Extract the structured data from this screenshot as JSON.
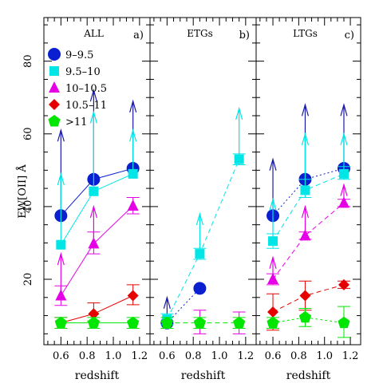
{
  "chart_data": {
    "type": "scatter",
    "ylabel": "EW[OII] Å",
    "ylim": [
      2,
      92
    ],
    "yticks": [
      20,
      40,
      60,
      80
    ],
    "xticks": [
      0.6,
      0.8,
      1.0,
      1.2
    ],
    "legend_placement": "top-left of panel a",
    "series_styles": [
      {
        "name": "9–9.5",
        "color": "#0a1fd0",
        "arrow_color": "#1a1aa8",
        "marker": "circle",
        "dash": "2,3"
      },
      {
        "name": "9.5–10",
        "color": "#00e5e5",
        "arrow_color": "#00e5e5",
        "marker": "square",
        "dash": "none"
      },
      {
        "name": "10–10.5",
        "color": "#e600e6",
        "arrow_color": "#e600e6",
        "marker": "triangle",
        "dash": "none"
      },
      {
        "name": "10.5–11",
        "color": "#e60000",
        "arrow_color": "#e60000",
        "marker": "diamond",
        "dash": "none"
      },
      {
        "name": ">11",
        "color": "#00e600",
        "arrow_color": "#00e600",
        "marker": "pentagon",
        "dash": "6,4"
      }
    ],
    "panels": [
      {
        "title": "ALL",
        "tag": "a)",
        "xlabel": "redshift",
        "xlim": [
          0.47,
          1.28
        ],
        "show_legend": true,
        "show_y": true,
        "series": [
          {
            "style": 0,
            "x": [
              0.6,
              0.85,
              1.15
            ],
            "y": [
              37.5,
              47.5,
              50.5
            ],
            "arrow_to": [
              61,
              72,
              69
            ],
            "dash": "none"
          },
          {
            "style": 1,
            "x": [
              0.6,
              0.85,
              1.15
            ],
            "y": [
              29.5,
              44.2,
              49
            ],
            "arrow_to": [
              49,
              66,
              61
            ],
            "dash": "none"
          },
          {
            "style": 2,
            "x": [
              0.6,
              0.85,
              1.15
            ],
            "y": [
              15.5,
              29.8,
              40.2
            ],
            "err": [
              [
                12.8,
                18.2
              ],
              [
                27,
                33
              ],
              [
                38,
                42.5
              ]
            ],
            "arrow_to": [
              27,
              40,
              null
            ],
            "dash": "none"
          },
          {
            "style": 3,
            "x": [
              0.6,
              0.85,
              1.15
            ],
            "y": [
              8,
              10.5,
              15.5
            ],
            "err": [
              [
                6.5,
                9.5
              ],
              [
                8.5,
                13.5
              ],
              [
                13,
                18.5
              ]
            ],
            "dash": "none"
          },
          {
            "style": 4,
            "x": [
              0.6,
              0.85,
              1.15
            ],
            "y": [
              8,
              8,
              8
            ],
            "err": [
              [
                6.5,
                9.5
              ],
              [
                6.5,
                9.5
              ],
              [
                6.5,
                9.5
              ]
            ],
            "dash": "none"
          }
        ]
      },
      {
        "title": "ETGs",
        "tag": "b)",
        "xlabel": "redshift",
        "xlim": [
          0.47,
          1.28
        ],
        "show_legend": false,
        "show_y": false,
        "series": [
          {
            "style": 0,
            "x": [
              0.6,
              0.85
            ],
            "y": [
              8,
              17.5
            ],
            "arrow_to": [
              15,
              null
            ],
            "dash": "2,3"
          },
          {
            "style": 1,
            "x": [
              0.6,
              0.85,
              1.15
            ],
            "y": [
              9,
              27,
              53
            ],
            "err": [
              [
                7.5,
                10.5
              ],
              [
                25.5,
                28.5
              ],
              [
                51.5,
                54.5
              ]
            ],
            "arrow_to": [
              null,
              38,
              67
            ],
            "dash": "6,4"
          },
          {
            "style": 2,
            "x": [
              0.85,
              1.15
            ],
            "y": [
              null,
              null
            ],
            "err": [
              [
                5,
                11.5
              ],
              [
                5,
                11
              ]
            ],
            "dash": "none"
          },
          {
            "style": 4,
            "x": [
              0.6,
              0.85,
              1.15
            ],
            "y": [
              8,
              8,
              8
            ],
            "err": [
              [
                6.5,
                9.5
              ],
              [
                6.5,
                9.5
              ],
              [
                6.5,
                9.5
              ]
            ],
            "dash": "6,4"
          }
        ]
      },
      {
        "title": "LTGs",
        "tag": "c)",
        "xlabel": "redshift",
        "xlim": [
          0.47,
          1.28
        ],
        "show_legend": false,
        "show_y": false,
        "series": [
          {
            "style": 0,
            "x": [
              0.6,
              0.85,
              1.15
            ],
            "y": [
              37.5,
              47.5,
              50.5
            ],
            "arrow_to": [
              53,
              68,
              68
            ],
            "dash": "2,3"
          },
          {
            "style": 1,
            "x": [
              0.6,
              0.85,
              1.15
            ],
            "y": [
              30.5,
              44.5,
              49
            ],
            "err": [
              [
                28.5,
                32.5
              ],
              [
                42.5,
                47.5
              ],
              [
                47.5,
                51
              ]
            ],
            "arrow_to": [
              42,
              60,
              60
            ],
            "dash": "6,4"
          },
          {
            "style": 2,
            "x": [
              0.6,
              0.85,
              1.15
            ],
            "y": [
              20,
              32,
              41
            ],
            "err": [
              [
                18.5,
                21.5
              ],
              [
                31,
                33
              ],
              [
                40,
                42
              ]
            ],
            "arrow_to": [
              26,
              40,
              46
            ],
            "dash": "6,4"
          },
          {
            "style": 3,
            "x": [
              0.6,
              0.85,
              1.15
            ],
            "y": [
              11,
              15.5,
              18.5
            ],
            "err": [
              [
                6,
                16
              ],
              [
                11.5,
                19.5
              ],
              [
                17.5,
                19.5
              ]
            ],
            "dash": "6,4"
          },
          {
            "style": 4,
            "x": [
              0.6,
              0.85,
              1.15
            ],
            "y": [
              8,
              9.5,
              8
            ],
            "err": [
              [
                6.5,
                9.5
              ],
              [
                7,
                12
              ],
              [
                4,
                12.5
              ]
            ],
            "dash": "3,3"
          }
        ]
      }
    ]
  }
}
